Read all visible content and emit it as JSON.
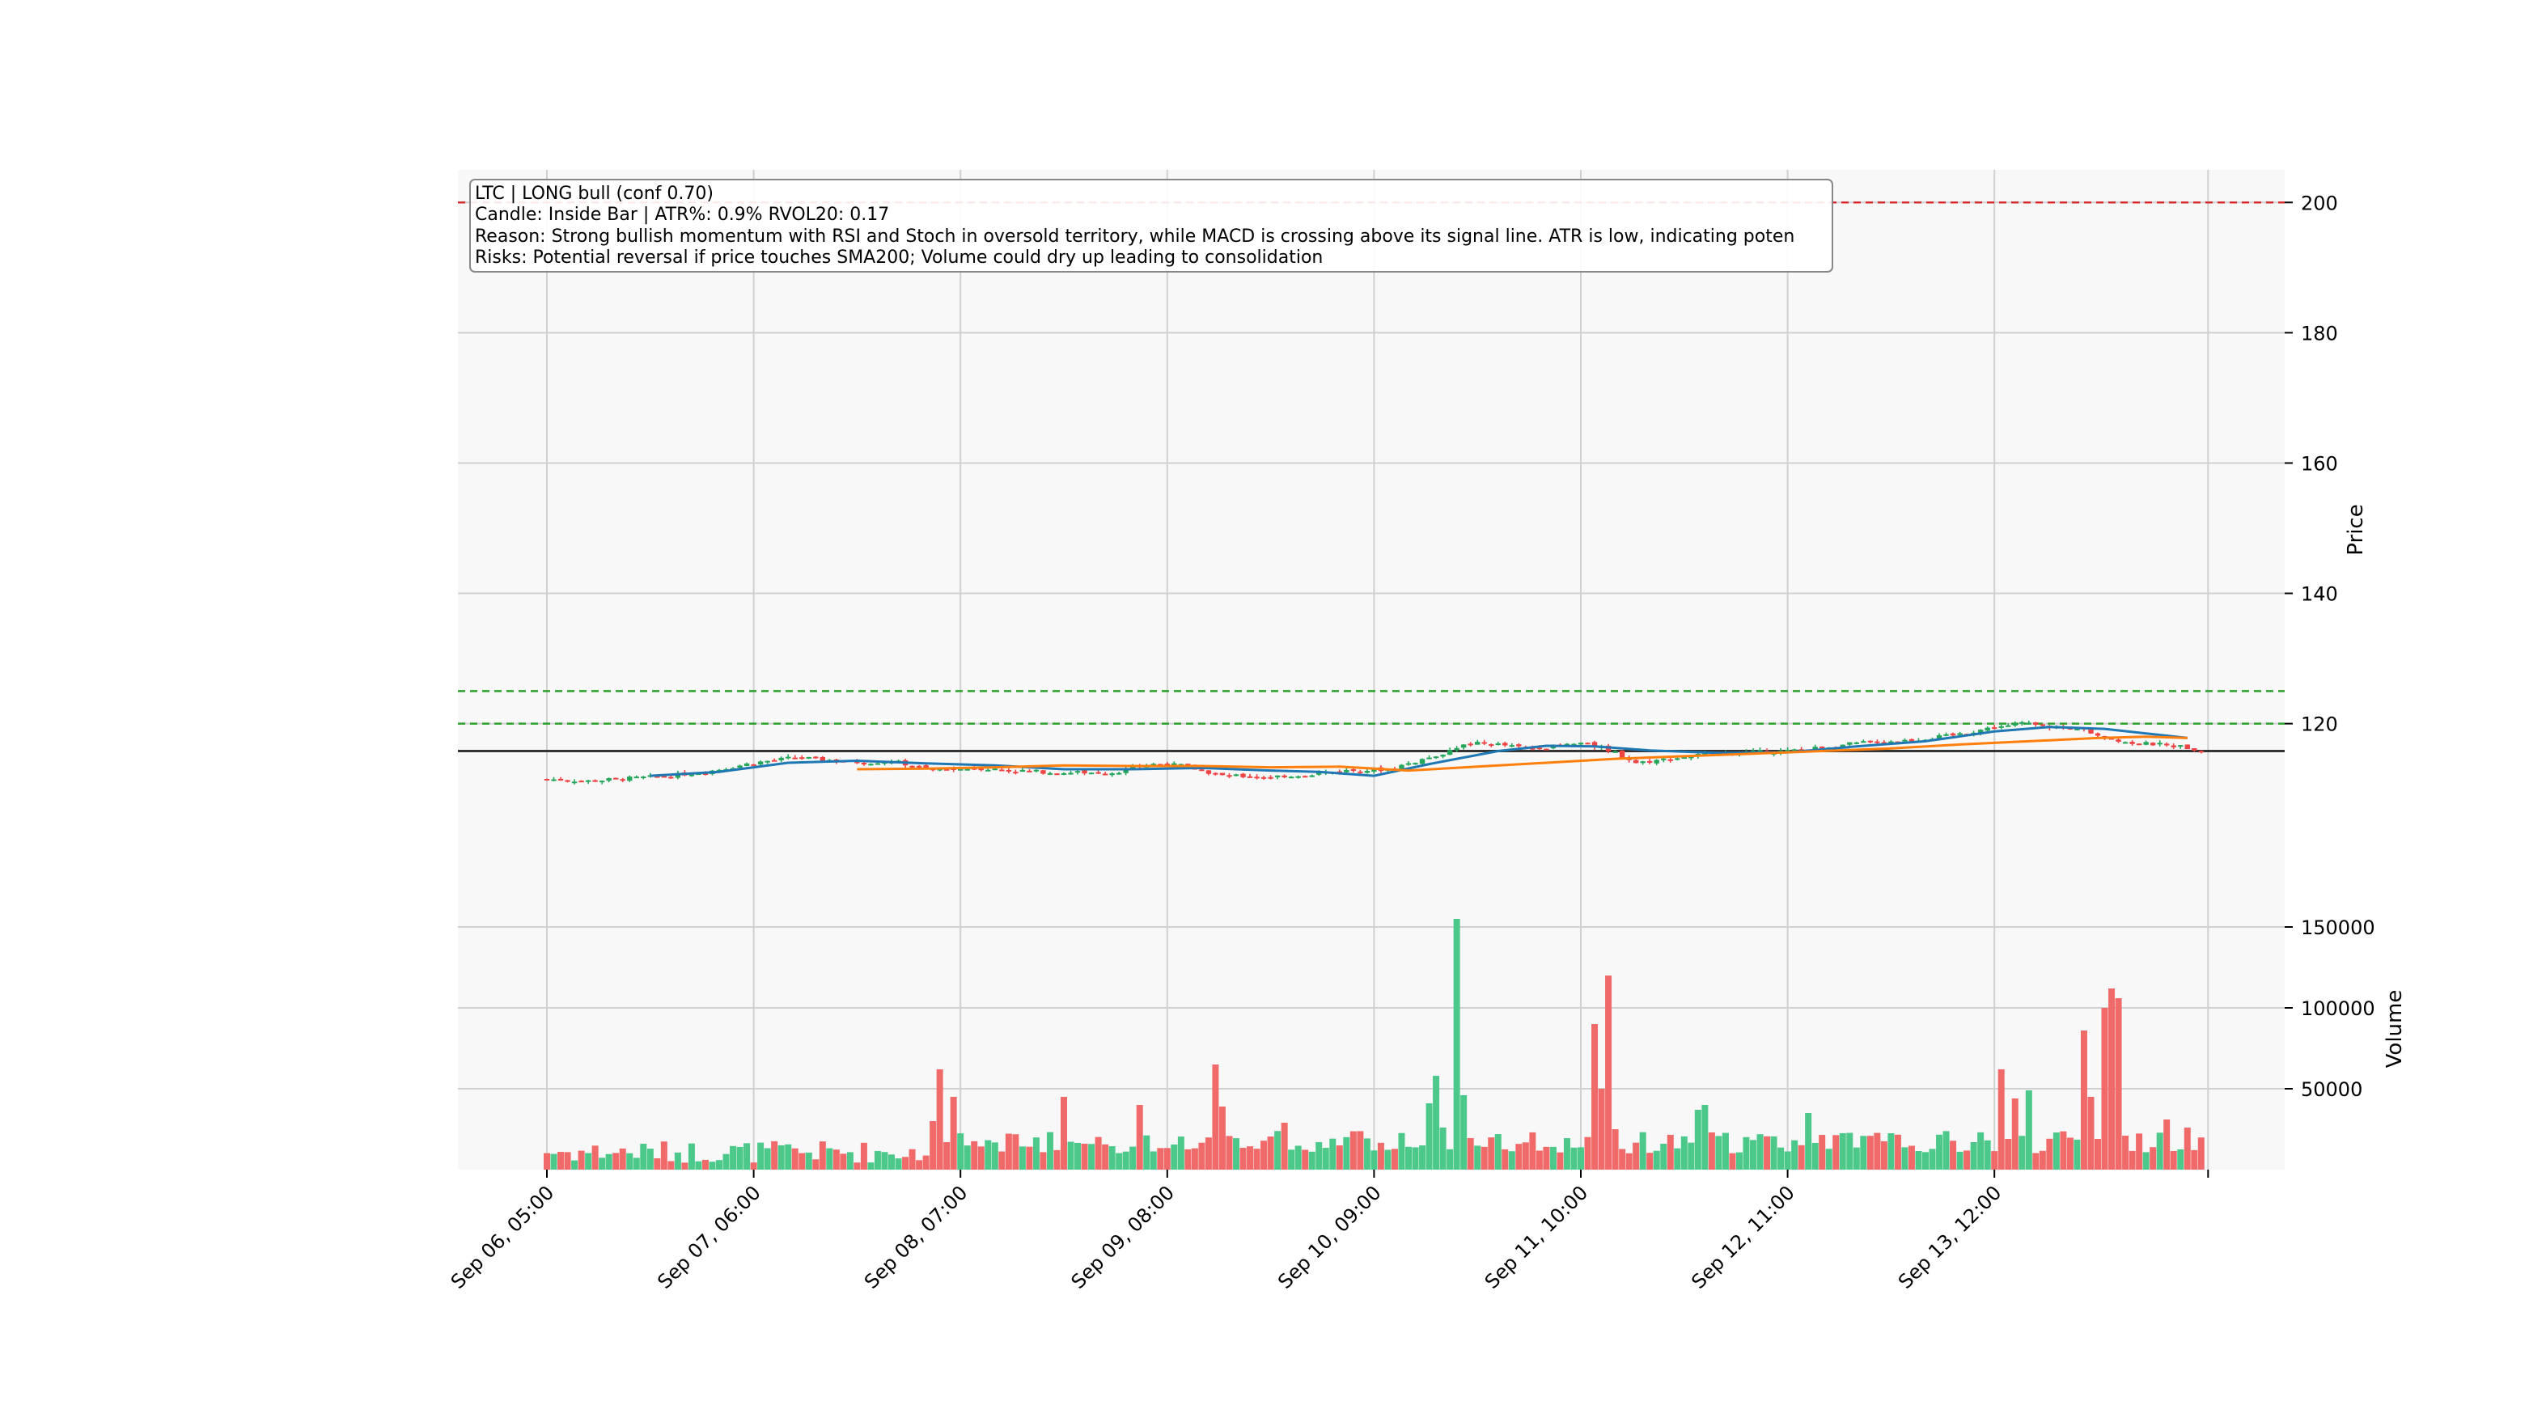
{
  "chart_data": {
    "type": "candlestick",
    "annotation": {
      "line1": "LTC  |  LONG  bull  (conf 0.70)",
      "line2": "Candle: Inside Bar  |  ATR%: 0.9%  RVOL20: 0.17",
      "line3": "Reason: Strong bullish momentum with RSI and Stoch in oversold territory, while MACD is crossing above its signal line. ATR is low, indicating poten",
      "line4": "Risks: Potential reversal if price touches SMA200; Volume could dry up leading to consolidation"
    },
    "price_panel": {
      "ylabel": "Price",
      "ylim": [
        95,
        205
      ],
      "yticks": [
        120,
        140,
        160,
        180,
        200
      ],
      "hlines": [
        {
          "value": 200,
          "color": "#d62728",
          "style": "dashed"
        },
        {
          "value": 125,
          "color": "#2ca02c",
          "style": "dashed"
        },
        {
          "value": 120,
          "color": "#2ca02c",
          "style": "dashed"
        },
        {
          "value": 115.8,
          "color": "#333333",
          "style": "solid"
        }
      ],
      "price_anchors": [
        [
          0,
          111.5
        ],
        [
          6,
          111.2
        ],
        [
          12,
          111.6
        ],
        [
          18,
          112.0
        ],
        [
          24,
          112.8
        ],
        [
          30,
          114.0
        ],
        [
          36,
          114.8
        ],
        [
          40,
          114.5
        ],
        [
          46,
          114.0
        ],
        [
          50,
          114.3
        ],
        [
          56,
          112.8
        ],
        [
          62,
          113.2
        ],
        [
          68,
          112.8
        ],
        [
          74,
          112.5
        ],
        [
          82,
          112.5
        ],
        [
          88,
          113.8
        ],
        [
          92,
          113.6
        ],
        [
          98,
          112.0
        ],
        [
          104,
          111.8
        ],
        [
          110,
          112.2
        ],
        [
          116,
          112.8
        ],
        [
          122,
          113.0
        ],
        [
          126,
          114.2
        ],
        [
          130,
          115.5
        ],
        [
          134,
          117.0
        ],
        [
          138,
          116.8
        ],
        [
          142,
          116.2
        ],
        [
          146,
          116.5
        ],
        [
          150,
          117.0
        ],
        [
          154,
          116.0
        ],
        [
          158,
          114.0
        ],
        [
          162,
          114.5
        ],
        [
          168,
          115.3
        ],
        [
          174,
          115.6
        ],
        [
          180,
          115.8
        ],
        [
          186,
          116.5
        ],
        [
          192,
          117.2
        ],
        [
          198,
          117.5
        ],
        [
          204,
          118.2
        ],
        [
          210,
          119.5
        ],
        [
          214,
          120.0
        ],
        [
          218,
          119.5
        ],
        [
          222,
          119.2
        ],
        [
          226,
          118.0
        ],
        [
          230,
          117.0
        ],
        [
          234,
          116.8
        ],
        [
          238,
          116.3
        ],
        [
          240,
          115.8
        ]
      ],
      "sma_fast": {
        "color": "#1f77b4",
        "points": [
          [
            15,
            112.0
          ],
          [
            25,
            112.6
          ],
          [
            35,
            114.0
          ],
          [
            45,
            114.3
          ],
          [
            55,
            113.9
          ],
          [
            65,
            113.6
          ],
          [
            75,
            113.0
          ],
          [
            85,
            113.0
          ],
          [
            95,
            113.2
          ],
          [
            105,
            112.8
          ],
          [
            112,
            112.6
          ],
          [
            120,
            112.0
          ],
          [
            128,
            113.8
          ],
          [
            138,
            115.8
          ],
          [
            145,
            116.6
          ],
          [
            152,
            116.5
          ],
          [
            160,
            115.9
          ],
          [
            170,
            115.5
          ],
          [
            180,
            115.6
          ],
          [
            190,
            116.5
          ],
          [
            200,
            117.3
          ],
          [
            210,
            118.8
          ],
          [
            218,
            119.5
          ],
          [
            226,
            119.2
          ],
          [
            232,
            118.5
          ],
          [
            238,
            117.8
          ]
        ]
      },
      "sma_slow": {
        "color": "#ff7f0e",
        "points": [
          [
            45,
            113.0
          ],
          [
            55,
            113.1
          ],
          [
            65,
            113.3
          ],
          [
            75,
            113.6
          ],
          [
            85,
            113.5
          ],
          [
            95,
            113.5
          ],
          [
            105,
            113.3
          ],
          [
            115,
            113.4
          ],
          [
            125,
            112.8
          ],
          [
            135,
            113.4
          ],
          [
            145,
            114.0
          ],
          [
            155,
            114.6
          ],
          [
            165,
            115.0
          ],
          [
            175,
            115.4
          ],
          [
            185,
            115.8
          ],
          [
            195,
            116.2
          ],
          [
            205,
            116.8
          ],
          [
            215,
            117.3
          ],
          [
            225,
            117.8
          ],
          [
            232,
            118.0
          ],
          [
            238,
            117.8
          ]
        ]
      }
    },
    "volume_panel": {
      "ylabel": "Volume",
      "ylim": [
        0,
        175000
      ],
      "yticks": [
        50000,
        100000,
        150000
      ]
    },
    "x": {
      "n_candles": 241,
      "tick_labels": [
        "Sep 06, 05:00",
        "Sep 07, 06:00",
        "Sep 08, 07:00",
        "Sep 09, 08:00",
        "Sep 10, 09:00",
        "Sep 11, 10:00",
        "Sep 12, 11:00",
        "Sep 13, 12:00"
      ],
      "tick_positions": [
        0,
        30,
        60,
        90,
        120,
        150,
        180,
        210
      ]
    },
    "colors": {
      "up": "#26a65b",
      "down": "#ef4444",
      "up_volume": "#4cc98a",
      "down_volume": "#f06a6a",
      "panel_bg": "#f8f8f8",
      "grid": "#d0d0d0"
    },
    "volume_spikes": [
      [
        56,
        30000
      ],
      [
        57,
        62000
      ],
      [
        58,
        17000
      ],
      [
        59,
        45000
      ],
      [
        75,
        45000
      ],
      [
        86,
        40000
      ],
      [
        97,
        65000
      ],
      [
        98,
        39000
      ],
      [
        107,
        29000
      ],
      [
        128,
        41000
      ],
      [
        129,
        58000
      ],
      [
        130,
        26000
      ],
      [
        132,
        155000
      ],
      [
        133,
        46000
      ],
      [
        152,
        90000
      ],
      [
        153,
        50000
      ],
      [
        154,
        120000
      ],
      [
        155,
        25000
      ],
      [
        167,
        37000
      ],
      [
        168,
        40000
      ],
      [
        183,
        35000
      ],
      [
        211,
        62000
      ],
      [
        212,
        19000
      ],
      [
        213,
        44000
      ],
      [
        215,
        49000
      ],
      [
        223,
        86000
      ],
      [
        224,
        45000
      ],
      [
        225,
        19000
      ],
      [
        226,
        100000
      ],
      [
        227,
        112000
      ],
      [
        228,
        106000
      ],
      [
        229,
        21000
      ],
      [
        235,
        31000
      ],
      [
        238,
        26000
      ]
    ]
  }
}
